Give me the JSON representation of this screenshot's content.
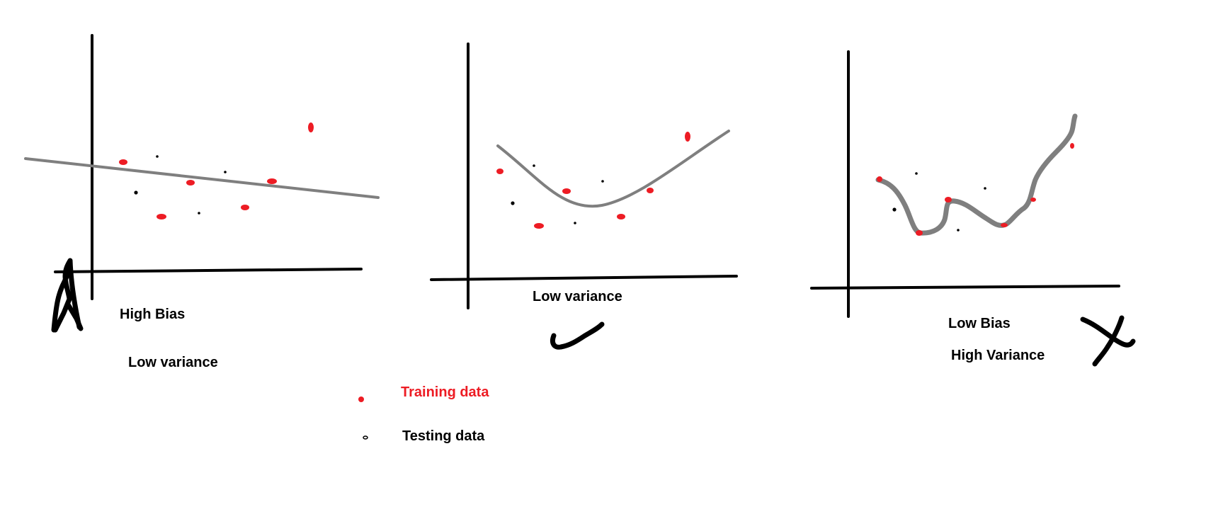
{
  "panels": [
    {
      "labels": [
        "High Bias",
        "Low variance"
      ],
      "verdict": "cross"
    },
    {
      "labels": [
        "Low variance"
      ],
      "verdict": "check"
    },
    {
      "labels": [
        "Low Bias",
        "High Variance"
      ],
      "verdict": "cross"
    }
  ],
  "legend": {
    "training_label": "Training data",
    "testing_label": "Testing data"
  },
  "colors": {
    "training": "#ed1c24",
    "testing": "#000000",
    "fit_line": "#7f7f7f",
    "axes": "#000000"
  }
}
